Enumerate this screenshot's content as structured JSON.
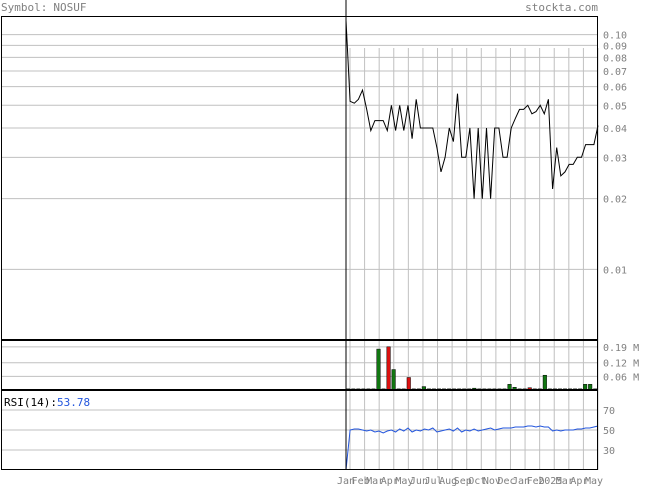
{
  "header": {
    "symbol_label": "Symbol:",
    "symbol": "NOSUF",
    "site": "stockta.com"
  },
  "rsi": {
    "label": "RSI(14):",
    "value": "53.78",
    "axis_ticks": [
      70,
      50,
      30
    ]
  },
  "colors": {
    "background": "#ffffff",
    "border": "#000000",
    "grid": "#c0c0c0",
    "axis_text": "#808080",
    "header_text": "#808080",
    "price_line": "#000000",
    "rsi_line": "#2255dd",
    "rsi_value": "#2255dd",
    "volume_up": "#117711",
    "volume_down": "#dd1111"
  },
  "chart_data": [
    {
      "type": "line",
      "name": "price",
      "scale": "log",
      "ylim": [
        0.005,
        0.12
      ],
      "y_ticks": [
        "0.10",
        "0.09",
        "0.08",
        "0.07",
        "0.06",
        "0.05",
        "0.04",
        "0.03",
        "0.02",
        "0.01"
      ],
      "x_tick_labels": [
        "Jan",
        "Feb",
        "Mar",
        "Apr",
        "May",
        "Jun",
        "Jul",
        "Aug",
        "Sep",
        "Oct",
        "Nov",
        "Dec",
        "Jan",
        "Feb",
        "2025",
        "Mar",
        "Apr",
        "May"
      ],
      "values": [
        0.115,
        0.052,
        0.051,
        0.053,
        0.058,
        0.048,
        0.039,
        0.043,
        0.043,
        0.043,
        0.039,
        0.05,
        0.039,
        0.05,
        0.039,
        0.05,
        0.036,
        0.053,
        0.04,
        0.04,
        0.04,
        0.04,
        0.033,
        0.026,
        0.03,
        0.04,
        0.035,
        0.056,
        0.03,
        0.03,
        0.04,
        0.02,
        0.04,
        0.02,
        0.04,
        0.02,
        0.04,
        0.04,
        0.03,
        0.03,
        0.04,
        0.044,
        0.048,
        0.048,
        0.05,
        0.046,
        0.047,
        0.05,
        0.046,
        0.053,
        0.022,
        0.033,
        0.025,
        0.026,
        0.028,
        0.028,
        0.03,
        0.03,
        0.034,
        0.034,
        0.034,
        0.041
      ]
    },
    {
      "type": "bar",
      "name": "volume",
      "unit": "M",
      "ylim": [
        0,
        0.22
      ],
      "y_ticks": [
        "0.19 M",
        "0.12 M",
        "0.06 M"
      ],
      "bars": [
        {
          "v": 0.005,
          "c": "up"
        },
        {
          "v": 0.005,
          "c": "up"
        },
        {
          "v": 0.005,
          "c": "up"
        },
        {
          "v": 0.005,
          "c": "up"
        },
        {
          "v": 0.005,
          "c": "up"
        },
        {
          "v": 0.005,
          "c": "up"
        },
        {
          "v": 0.18,
          "c": "up"
        },
        {
          "v": 0.005,
          "c": "up"
        },
        {
          "v": 0.19,
          "c": "down"
        },
        {
          "v": 0.09,
          "c": "up"
        },
        {
          "v": 0.005,
          "c": "up"
        },
        {
          "v": 0.005,
          "c": "up"
        },
        {
          "v": 0.055,
          "c": "down"
        },
        {
          "v": 0.005,
          "c": "up"
        },
        {
          "v": 0.005,
          "c": "up"
        },
        {
          "v": 0.015,
          "c": "up"
        },
        {
          "v": 0.005,
          "c": "up"
        },
        {
          "v": 0.005,
          "c": "up"
        },
        {
          "v": 0.005,
          "c": "up"
        },
        {
          "v": 0.005,
          "c": "up"
        },
        {
          "v": 0.005,
          "c": "up"
        },
        {
          "v": 0.005,
          "c": "up"
        },
        {
          "v": 0.005,
          "c": "up"
        },
        {
          "v": 0.005,
          "c": "up"
        },
        {
          "v": 0.005,
          "c": "up"
        },
        {
          "v": 0.008,
          "c": "up"
        },
        {
          "v": 0.005,
          "c": "up"
        },
        {
          "v": 0.005,
          "c": "up"
        },
        {
          "v": 0.005,
          "c": "up"
        },
        {
          "v": 0.005,
          "c": "up"
        },
        {
          "v": 0.005,
          "c": "up"
        },
        {
          "v": 0.005,
          "c": "up"
        },
        {
          "v": 0.025,
          "c": "up"
        },
        {
          "v": 0.012,
          "c": "up"
        },
        {
          "v": 0.005,
          "c": "up"
        },
        {
          "v": 0.005,
          "c": "up"
        },
        {
          "v": 0.01,
          "c": "down"
        },
        {
          "v": 0.005,
          "c": "up"
        },
        {
          "v": 0.005,
          "c": "up"
        },
        {
          "v": 0.065,
          "c": "up"
        },
        {
          "v": 0.005,
          "c": "up"
        },
        {
          "v": 0.005,
          "c": "up"
        },
        {
          "v": 0.005,
          "c": "up"
        },
        {
          "v": 0.005,
          "c": "up"
        },
        {
          "v": 0.005,
          "c": "up"
        },
        {
          "v": 0.005,
          "c": "up"
        },
        {
          "v": 0.005,
          "c": "up"
        },
        {
          "v": 0.025,
          "c": "up"
        },
        {
          "v": 0.025,
          "c": "up"
        },
        {
          "v": 0.005,
          "c": "up"
        }
      ]
    },
    {
      "type": "line",
      "name": "RSI(14)",
      "ylim": [
        10,
        90
      ],
      "values": [
        10,
        50,
        51,
        51,
        50,
        49,
        50,
        48,
        49,
        47,
        49,
        50,
        48,
        51,
        49,
        52,
        48,
        50,
        49,
        51,
        50,
        52,
        48,
        49,
        50,
        51,
        49,
        52,
        48,
        50,
        49,
        51,
        49,
        50,
        51,
        52,
        50,
        51,
        52,
        52,
        52,
        53,
        53,
        53,
        54,
        54,
        53,
        54,
        53,
        53,
        49,
        50,
        49,
        50,
        50,
        50,
        51,
        51,
        52,
        52,
        53,
        54
      ]
    }
  ]
}
